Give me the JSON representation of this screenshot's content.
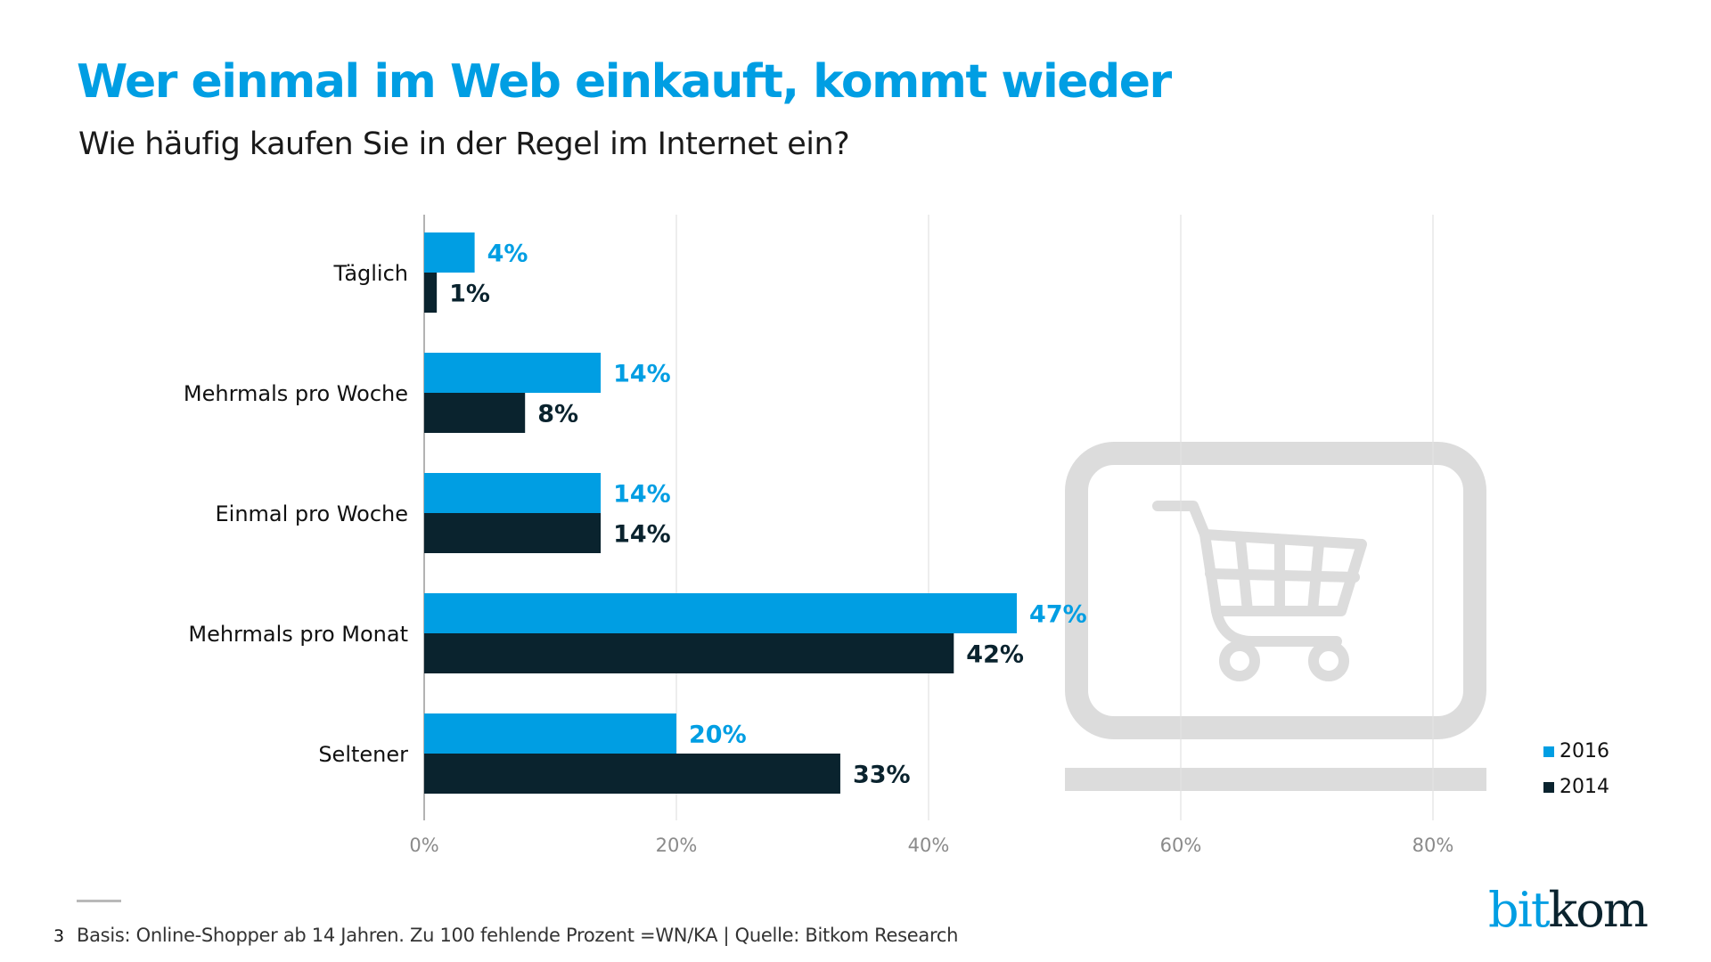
{
  "header": {
    "title": "Wer einmal im Web einkauft, kommt wieder",
    "subtitle": "Wie häufig kaufen Sie in der Regel im Internet ein?"
  },
  "footer": {
    "page_number": "3",
    "note": "Basis: Online-Shopper ab 14 Jahren. Zu 100 fehlende Prozent =WN/KA | Quelle: Bitkom Research",
    "logo_part1": "bit",
    "logo_part2": "kom"
  },
  "decoration": {
    "icon": "laptop-shopping-cart-icon",
    "color": "#dcdcdc"
  },
  "chart_data": {
    "type": "bar",
    "orientation": "horizontal",
    "title": "Wer einmal im Web einkauft, kommt wieder",
    "subtitle": "Wie häufig kaufen Sie in der Regel im Internet ein?",
    "xlabel": "",
    "ylabel": "",
    "categories": [
      "Täglich",
      "Mehrmals pro Woche",
      "Einmal pro Woche",
      "Mehrmals pro Monat",
      "Seltener"
    ],
    "series": [
      {
        "name": "2016",
        "color": "#009ee3",
        "values": [
          4,
          14,
          14,
          47,
          20
        ],
        "labels": [
          "4%",
          "14%",
          "14%",
          "47%",
          "20%"
        ]
      },
      {
        "name": "2014",
        "color": "#0a232e",
        "values": [
          1,
          8,
          14,
          42,
          33
        ],
        "labels": [
          "1%",
          "8%",
          "14%",
          "42%",
          "33%"
        ]
      }
    ],
    "xlim": [
      0,
      80
    ],
    "xticks": [
      0,
      20,
      40,
      60,
      80
    ],
    "xtick_labels": [
      "0%",
      "20%",
      "40%",
      "60%",
      "80%"
    ],
    "grid": true,
    "legend_position": "bottom-right"
  }
}
